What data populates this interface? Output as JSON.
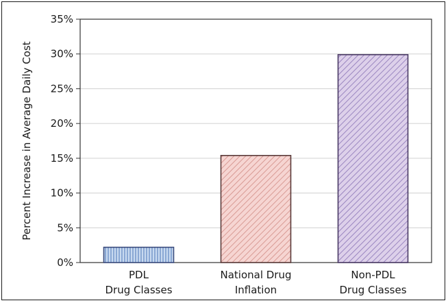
{
  "chart_data": {
    "type": "bar",
    "title": "",
    "xlabel": "",
    "ylabel": "Percent Increase in Average Daily Cost",
    "ylim": [
      0,
      35
    ],
    "yticks": [
      0,
      5,
      10,
      15,
      20,
      25,
      30,
      35
    ],
    "ytick_labels": [
      "0%",
      "5%",
      "10%",
      "15%",
      "20%",
      "25%",
      "30%",
      "35%"
    ],
    "grid": true,
    "legend": "none",
    "categories": [
      [
        "PDL",
        "Drug Classes"
      ],
      [
        "National Drug",
        "Inflation"
      ],
      [
        "Non-PDL",
        "Drug Classes"
      ]
    ],
    "values": [
      2.2,
      15.4,
      29.9
    ],
    "colors": {
      "bar_fills": [
        "#c9daf0",
        "#f6d5d2",
        "#ddd0ea"
      ],
      "bar_hatches": [
        "#6f92c8",
        "#d89a94",
        "#9a86c0"
      ],
      "bar_strokes": [
        "#3c4d7e",
        "#5a3b3a",
        "#4a3a64"
      ],
      "grid": "#d0d0d0",
      "axis": "#333333"
    }
  }
}
